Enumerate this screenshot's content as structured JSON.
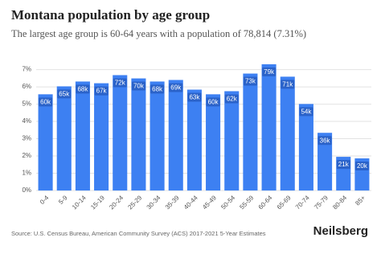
{
  "chart_data": {
    "type": "bar",
    "title": "Montana population by age group",
    "subtitle": "The largest age group is 60-64 years with a population of 78,814 (7.31%)",
    "categories": [
      "0-4",
      "5-9",
      "10-14",
      "15-19",
      "20-24",
      "25-29",
      "30-34",
      "35-39",
      "40-44",
      "45-49",
      "50-54",
      "55-59",
      "60-64",
      "65-69",
      "70-74",
      "75-79",
      "80-84",
      "85+"
    ],
    "values": [
      5.57,
      6.03,
      6.31,
      6.21,
      6.68,
      6.49,
      6.31,
      6.4,
      5.84,
      5.57,
      5.75,
      6.77,
      7.31,
      6.59,
      5.01,
      3.34,
      1.95,
      1.86
    ],
    "value_labels": [
      "60k",
      "65k",
      "68k",
      "67k",
      "72k",
      "70k",
      "68k",
      "69k",
      "63k",
      "60k",
      "62k",
      "73k",
      "79k",
      "71k",
      "54k",
      "36k",
      "21k",
      "20k"
    ],
    "color": "#3d80f2",
    "ylim": [
      0,
      7.4
    ],
    "yticks": [
      {
        "value": 0,
        "label": "0%"
      },
      {
        "value": 1,
        "label": "1%"
      },
      {
        "value": 2,
        "label": "2%"
      },
      {
        "value": 3,
        "label": "3%"
      },
      {
        "value": 4,
        "label": "4%"
      },
      {
        "value": 5,
        "label": "5%"
      },
      {
        "value": 6,
        "label": "6%"
      },
      {
        "value": 7,
        "label": "7%"
      }
    ],
    "grid": true,
    "source": "Source: U.S. Census Bureau, American Community Survey (ACS) 2017-2021 5-Year Estimates",
    "brand": "Neilsberg"
  }
}
